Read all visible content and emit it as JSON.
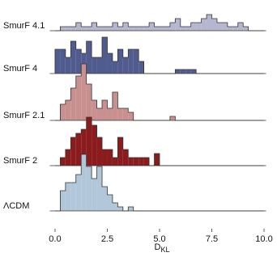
{
  "chart_data": {
    "type": "ridgeline-histogram",
    "xlabel": "D",
    "xlabel_sub": "KL",
    "xlim": [
      -0.25,
      10.1
    ],
    "xticks": [
      {
        "value": 0,
        "label": "0.0"
      },
      2.5,
      {
        "value": 5,
        "label": "5.0"
      },
      7.5,
      {
        "value": 10,
        "label": "10.0"
      }
    ],
    "bins": [
      0,
      0.25,
      0.5,
      0.75,
      1,
      1.25,
      1.5,
      1.75,
      2,
      2.25,
      2.5,
      2.75,
      3,
      3.25,
      3.5,
      3.75,
      4,
      4.25,
      4.5,
      4.75,
      5,
      5.25,
      5.5,
      5.75,
      6,
      6.25,
      6.5,
      6.75,
      7,
      7.25,
      7.5,
      7.75,
      8,
      8.25,
      8.5,
      8.75,
      9,
      9.25,
      9.5,
      9.75,
      10
    ],
    "series": [
      {
        "name": "SmurF 4.1",
        "color": "#b4b7cf",
        "values": [
          0,
          1,
          1,
          1,
          2,
          1,
          1,
          2,
          1,
          1,
          1,
          2,
          1,
          2,
          1,
          1,
          1,
          1,
          2,
          1,
          1,
          1,
          2,
          3,
          1,
          1,
          2,
          2,
          3,
          4,
          3,
          2,
          2,
          1,
          1,
          2,
          1,
          0,
          0,
          0
        ]
      },
      {
        "name": "SmurF 4",
        "color": "#505b8e",
        "values": [
          6,
          6,
          4,
          8,
          6,
          5,
          8,
          4,
          4,
          9,
          5,
          3,
          6,
          4,
          6,
          6,
          3,
          0,
          0,
          0,
          0,
          0,
          0,
          1,
          1,
          1,
          1,
          0,
          0,
          0,
          0,
          0,
          0,
          0,
          0,
          0,
          0,
          0,
          0,
          0
        ]
      },
      {
        "name": "SmurF 2.1",
        "color": "#c8908f",
        "values": [
          0,
          4,
          5,
          8,
          11,
          14,
          9,
          5,
          3,
          5,
          3,
          7,
          3,
          3,
          2,
          0,
          0,
          0,
          0,
          0,
          0,
          0,
          1,
          0,
          0,
          0,
          0,
          0,
          0,
          0,
          0,
          0,
          0,
          0,
          0,
          0,
          0,
          0,
          0,
          0
        ]
      },
      {
        "name": "SmurF 2",
        "color": "#8b1c1e",
        "values": [
          0,
          2,
          4,
          7,
          8,
          9,
          12,
          10,
          7,
          4,
          4,
          2,
          7,
          4,
          2,
          2,
          2,
          2,
          0,
          3,
          0,
          0,
          0,
          0,
          0,
          0,
          0,
          0,
          0,
          0,
          0,
          0,
          0,
          0,
          0,
          0,
          0,
          0,
          0,
          0
        ]
      },
      {
        "name": "ΛCDM",
        "color": "#b1c7d9",
        "values": [
          0,
          5,
          7,
          7,
          9,
          14,
          11,
          8,
          11,
          6,
          4,
          2,
          1,
          0,
          1,
          0,
          0,
          0,
          0,
          0,
          0,
          0,
          0,
          0,
          0,
          0,
          0,
          0,
          0,
          0,
          0,
          0,
          0,
          0,
          0,
          0,
          0,
          0,
          0,
          0
        ]
      }
    ]
  }
}
